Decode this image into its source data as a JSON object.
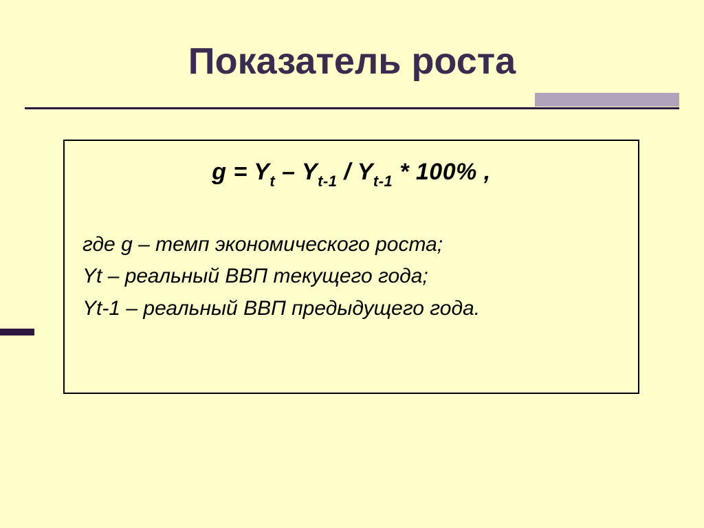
{
  "slide": {
    "title": "Показатель роста",
    "background_color": "#ffffcc",
    "title_color": "#3b2b4f",
    "rule_color": "#2e1740",
    "accent_color": "#b2a3bd",
    "box_border_color": "#000000",
    "text_color": "#000000",
    "title_fontsize": 54,
    "formula_fontsize": 34,
    "sub_fontsize": 22,
    "desc_fontsize": 30
  },
  "formula": {
    "g": "g",
    "eq": " = ",
    "Y": "Y",
    "t": "t",
    "dash": " – ",
    "t1": "t-1",
    "slash": " / ",
    "tail": " * 100% ,"
  },
  "desc": {
    "line1_a": "где ",
    "line1_g": "g",
    "line1_b": " – темп экономического роста;",
    "line2_a": " Y",
    "line2_t": "t",
    "line2_b": " – реальный ВВП текущего года;",
    "line3_a": " Y",
    "line3_t": "t-1",
    "line3_b": " – реальный ВВП предыдущего года."
  }
}
